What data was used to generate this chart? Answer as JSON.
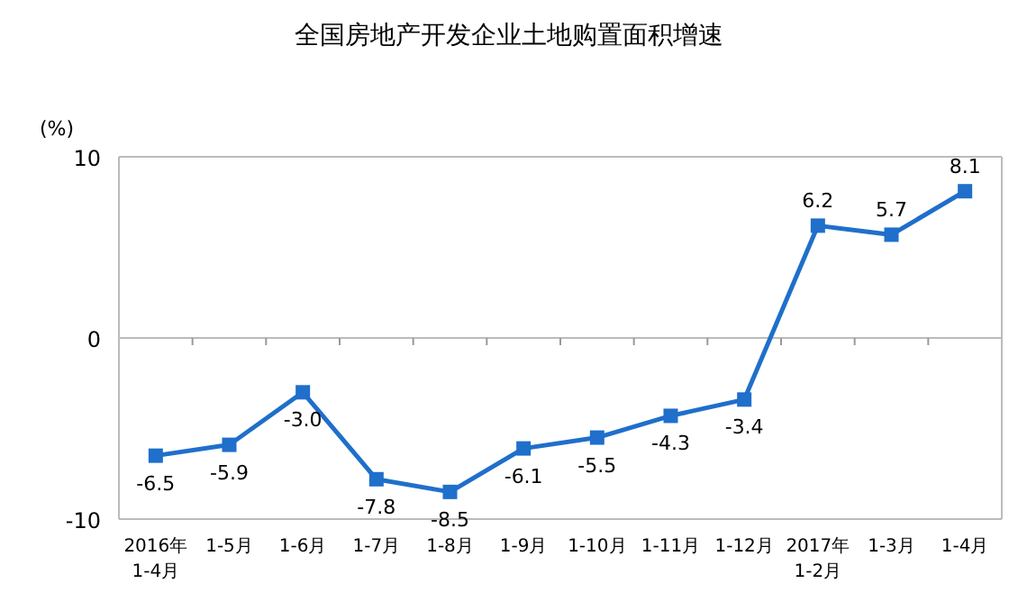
{
  "chart_data": {
    "type": "line",
    "title": "全国房地产开发企业土地购置面积增速",
    "ylabel": "(%)",
    "categories": [
      "2016年\n1-4月",
      "1-5月",
      "1-6月",
      "1-7月",
      "1-8月",
      "1-9月",
      "1-10月",
      "1-11月",
      "1-12月",
      "2017年\n1-2月",
      "1-3月",
      "1-4月"
    ],
    "series": [
      {
        "color": "#1f6fcb",
        "values": [
          -6.5,
          -5.9,
          -3.0,
          -7.8,
          -8.5,
          -6.1,
          -5.5,
          -4.3,
          -3.4,
          6.2,
          5.7,
          8.1
        ],
        "value_labels": [
          "-6.5",
          "-5.9",
          "-3.0",
          "-7.8",
          "-8.5",
          "-6.1",
          "-5.5",
          "-4.3",
          "-3.4",
          "6.2",
          "5.7",
          "8.1"
        ]
      }
    ],
    "ylim": [
      -10,
      10
    ],
    "yticks": [
      -10,
      0,
      10
    ],
    "marker": "square",
    "line_style": "solid",
    "grid": "y"
  }
}
